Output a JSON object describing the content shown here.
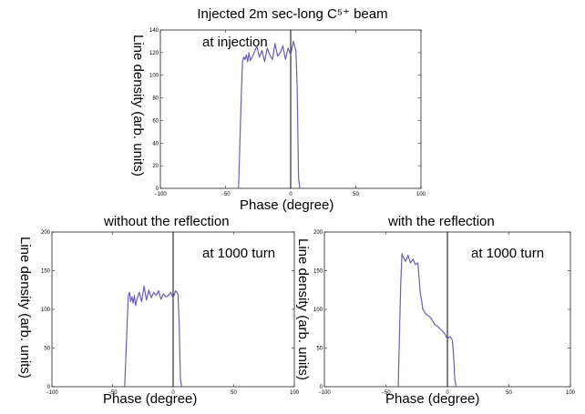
{
  "chart_data": [
    {
      "type": "line",
      "title": "Injected 2m sec-long C⁵⁺ beam",
      "annotation": "at injection",
      "xlabel": "Phase (degree)",
      "ylabel": "Line density (arb. units)",
      "xlim": [
        -100,
        100
      ],
      "ylim": [
        0,
        140
      ],
      "x_ticks": [
        -100,
        -50,
        0,
        50,
        100
      ],
      "y_ticks": [
        0,
        20,
        40,
        60,
        80,
        100,
        120,
        140
      ],
      "vertical_line_x": 0,
      "series_color": "#6a5fb8",
      "x": [
        -40,
        -38,
        -37,
        -36,
        -35,
        -34,
        -33,
        -32,
        -31,
        -30,
        -28,
        -26,
        -24,
        -22,
        -20,
        -18,
        -16,
        -14,
        -12,
        -10,
        -8,
        -6,
        -4,
        -2,
        0,
        2,
        4,
        5,
        6,
        7
      ],
      "y": [
        0,
        80,
        112,
        116,
        114,
        118,
        112,
        120,
        113,
        115,
        120,
        126,
        116,
        122,
        112,
        124,
        118,
        114,
        128,
        117,
        120,
        126,
        114,
        124,
        118,
        130,
        122,
        90,
        10,
        0
      ]
    },
    {
      "type": "line",
      "title": "without the reflection",
      "annotation": "at 1000 turn",
      "xlabel": "Phase (degree)",
      "ylabel": "Line density (arb. units)",
      "xlim": [
        -100,
        100
      ],
      "ylim": [
        0,
        200
      ],
      "x_ticks": [
        -100,
        -50,
        0,
        50,
        100
      ],
      "y_ticks": [
        0,
        50,
        100,
        150,
        200
      ],
      "vertical_line_x": 0,
      "series_color": "#6a5fb8",
      "x": [
        -40,
        -38,
        -37,
        -36,
        -35,
        -34,
        -33,
        -32,
        -31,
        -30,
        -28,
        -26,
        -24,
        -22,
        -20,
        -18,
        -16,
        -14,
        -12,
        -10,
        -8,
        -6,
        -4,
        -2,
        0,
        2,
        4,
        5,
        6,
        7
      ],
      "y": [
        0,
        80,
        118,
        122,
        110,
        116,
        108,
        118,
        105,
        112,
        122,
        110,
        130,
        112,
        125,
        115,
        122,
        118,
        124,
        113,
        120,
        116,
        118,
        122,
        115,
        124,
        120,
        80,
        10,
        0
      ]
    },
    {
      "type": "line",
      "title": "with the reflection",
      "annotation": "at 1000 turn",
      "xlabel": "Phase (degree)",
      "ylabel": "Line density (arb. units)",
      "xlim": [
        -100,
        100
      ],
      "ylim": [
        0,
        200
      ],
      "x_ticks": [
        -100,
        -50,
        0,
        50,
        100
      ],
      "y_ticks": [
        0,
        50,
        100,
        150,
        200
      ],
      "vertical_line_x": 0,
      "series_color": "#6a5fb8",
      "x": [
        -40,
        -38,
        -37,
        -36,
        -34,
        -32,
        -30,
        -28,
        -26,
        -24,
        -22,
        -21,
        -20,
        -19,
        -18,
        -16,
        -14,
        -12,
        -10,
        -8,
        -6,
        -4,
        -2,
        0,
        2,
        4,
        5,
        6,
        7
      ],
      "y": [
        0,
        130,
        172,
        168,
        162,
        170,
        160,
        165,
        158,
        160,
        120,
        112,
        100,
        98,
        95,
        92,
        90,
        85,
        80,
        78,
        75,
        72,
        68,
        62,
        65,
        60,
        40,
        10,
        0
      ]
    }
  ]
}
